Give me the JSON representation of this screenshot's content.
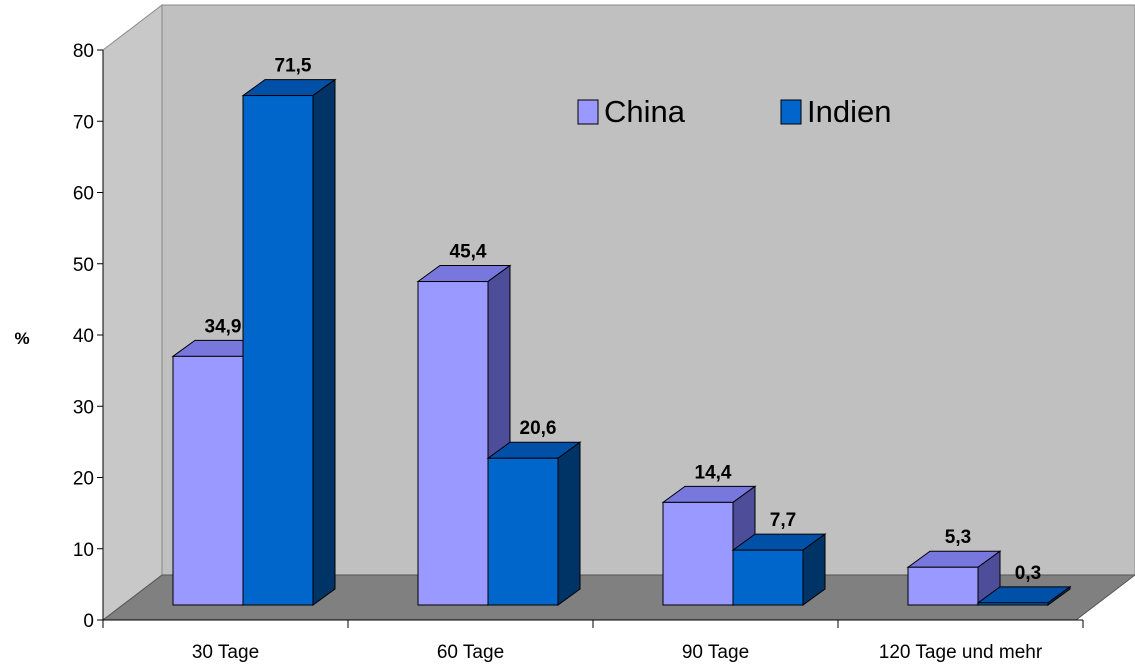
{
  "chart_data": {
    "type": "bar",
    "variant": "3d-clustered-column",
    "categories": [
      "30 Tage",
      "60 Tage",
      "90 Tage",
      "120 Tage und mehr"
    ],
    "series": [
      {
        "name": "China",
        "values": [
          34.9,
          45.4,
          14.4,
          5.3
        ],
        "value_labels": [
          "34,9",
          "45,4",
          "14,4",
          "5,3"
        ]
      },
      {
        "name": "Indien",
        "values": [
          71.5,
          20.6,
          7.7,
          0.3
        ],
        "value_labels": [
          "71,5",
          "20,6",
          "7,7",
          "0,3"
        ]
      }
    ],
    "ylabel": "%",
    "ylim": [
      0,
      80
    ],
    "yticks": [
      0,
      10,
      20,
      30,
      40,
      50,
      60,
      70,
      80
    ],
    "legend_position": "top-right",
    "grid": false
  },
  "colors": {
    "china_front": "#9999ff",
    "china_top": "#7777dd",
    "china_side": "#4d4d99",
    "indien_front": "#0066cc",
    "indien_top": "#0050a8",
    "indien_side": "#003366",
    "wall": "#c0c0c0",
    "floor": "#808080"
  }
}
